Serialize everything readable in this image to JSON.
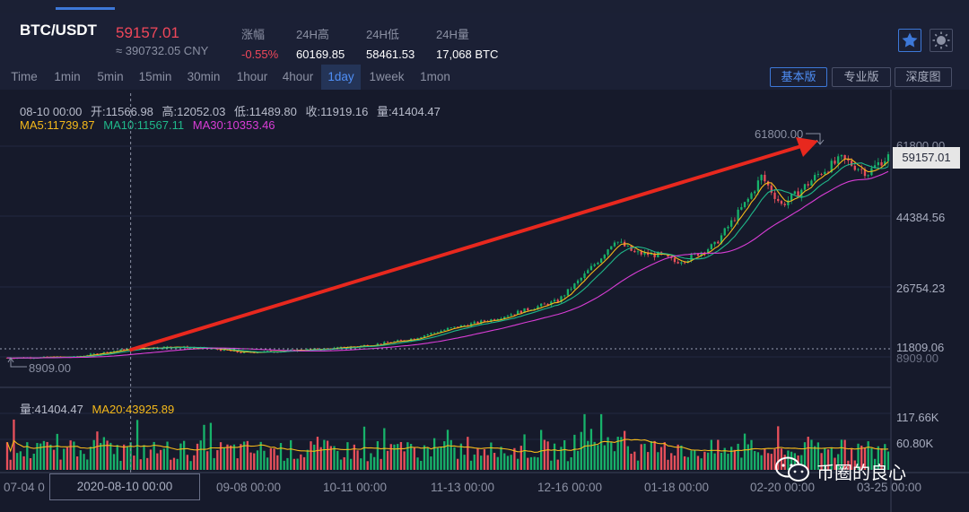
{
  "header": {
    "pair": "BTC/USDT",
    "price": "59157.01",
    "cny": "≈ 390732.05 CNY",
    "stats": [
      {
        "label": "涨幅",
        "value": "-0.55%"
      },
      {
        "label": "24H高",
        "value": "60169.85"
      },
      {
        "label": "24H低",
        "value": "58461.53"
      },
      {
        "label": "24H量",
        "value": "17,068 BTC"
      }
    ]
  },
  "toolbar": {
    "timeframes": [
      "Time",
      "1min",
      "5min",
      "15min",
      "30min",
      "1hour",
      "4hour",
      "1day",
      "1week",
      "1mon"
    ],
    "active_timeframe": "1day",
    "views": [
      "基本版",
      "专业版",
      "深度图"
    ],
    "active_view": "基本版"
  },
  "info": {
    "date": "08-10 00:00",
    "open": "开:11566.98",
    "high": "高:12052.03",
    "low": "低:11489.80",
    "close": "收:11919.16",
    "volume": "量:41404.47",
    "ma5": "MA5:11739.87",
    "ma10": "MA10:11567.11",
    "ma30": "MA30:10353.46"
  },
  "volume_info": {
    "volume": "量:41404.47",
    "ma20": "MA20:43925.89"
  },
  "price_axis": {
    "labels": [
      "61800.00",
      "44384.56",
      "26754.23",
      "11809.06",
      "8909.00"
    ],
    "current_price": "59157.01"
  },
  "volume_axis": {
    "labels": [
      "117.66K",
      "60.80K"
    ]
  },
  "annotations": {
    "high": "61800.00",
    "low": "8909.00"
  },
  "x_axis": {
    "labels": [
      "07-04 0",
      "09-08 00:00",
      "10-11 00:00",
      "11-13 00:00",
      "12-16 00:00",
      "01-18 00:00",
      "02-20 00:00",
      "03-25 00:00"
    ],
    "crosshair_label": "2020-08-10 00:00"
  },
  "watermark": {
    "text": "币圈的良心"
  },
  "colors": {
    "up": "#17b26a",
    "down": "#e8505b",
    "ma5": "#f5b91a",
    "ma10": "#1fb88a",
    "ma30": "#d93dd6",
    "arrow": "#e8281e",
    "accent": "#3d78d8"
  },
  "chart_data": {
    "type": "candlestick",
    "series": [
      {
        "name": "BTC/USDT",
        "values": [
          {
            "x": "07-04",
            "y": 9100
          },
          {
            "x": "08-10",
            "y": 11919.16
          },
          {
            "x": "09-08",
            "y": 10100
          },
          {
            "x": "10-11",
            "y": 11400
          },
          {
            "x": "11-13",
            "y": 16300
          },
          {
            "x": "12-16",
            "y": 21300
          },
          {
            "x": "01-18",
            "y": 36500
          },
          {
            "x": "02-20",
            "y": 57500
          },
          {
            "x": "03-25",
            "y": 59157.01
          }
        ]
      }
    ],
    "xlabel": "",
    "ylabel": ""
  }
}
